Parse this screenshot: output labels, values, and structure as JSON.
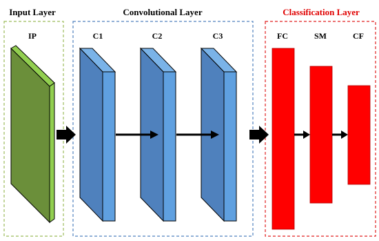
{
  "sections": {
    "input": {
      "title": "Input Layer",
      "layers": [
        "IP"
      ]
    },
    "conv": {
      "title": "Convolutional Layer",
      "layers": [
        "C1",
        "C2",
        "C3"
      ]
    },
    "classification": {
      "title": "Classification Layer",
      "layers": [
        "FC",
        "SM",
        "CF"
      ]
    }
  },
  "colors": {
    "input_box_border": "#9bbb59",
    "conv_box_border": "#4f81bd",
    "class_box_border": "#e01f1f",
    "input_front": "#6b8f3a",
    "input_side": "#92cf50",
    "conv_front": "#4f81bd",
    "conv_side": "#5fa0e0",
    "conv_top": "#7ab3e8",
    "class_bar": "#ff0000",
    "arrow": "#000000",
    "classification_title": "#e00000"
  }
}
